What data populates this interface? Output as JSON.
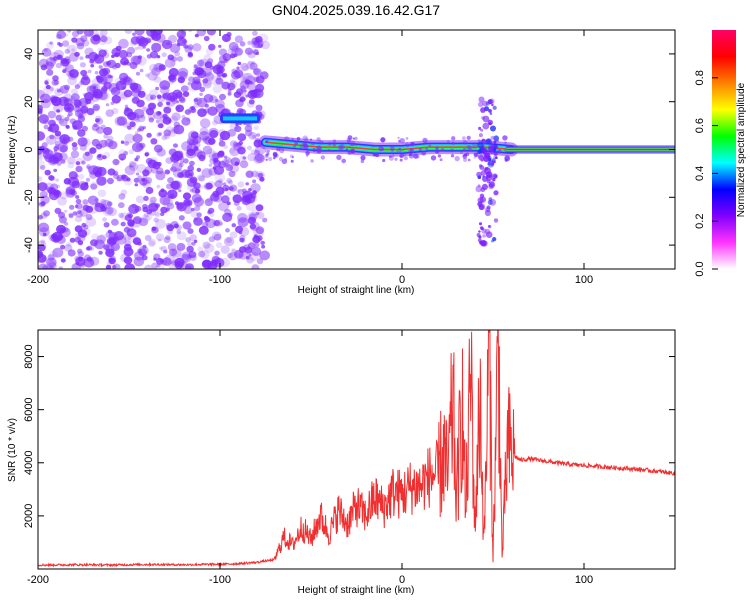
{
  "title": "GN04.2025.039.16.42.G17",
  "chart_data": [
    {
      "type": "heatmap",
      "xlabel": "Height of straight line (km)",
      "ylabel": "Frequency (Hz)",
      "xlim": [
        -200,
        150
      ],
      "ylim": [
        -50,
        50
      ],
      "xticks": [
        "-200",
        "-100",
        "0",
        "100"
      ],
      "yticks": [
        "-40",
        "-20",
        "0",
        "20",
        "40"
      ],
      "colorbar": {
        "label": "Normalized spectral amplitude",
        "range": [
          0,
          1
        ],
        "ticks": [
          "0.0",
          "0.2",
          "0.4",
          "0.6",
          "0.8"
        ],
        "colors": [
          "#ffffff",
          "#ff33ff",
          "#8000ff",
          "#0000ff",
          "#00ffff",
          "#00ff00",
          "#ffff00",
          "#ff8000",
          "#ff0000",
          "#ff0066"
        ]
      },
      "features": {
        "noise_region_x": [
          -200,
          -75
        ],
        "noise_color": "#7f2cff",
        "feature_segment": {
          "x": [
            -100,
            -78
          ],
          "y": 13
        },
        "ridge": [
          [
            -75,
            3
          ],
          [
            -60,
            2
          ],
          [
            -45,
            1
          ],
          [
            -30,
            1
          ],
          [
            -15,
            0
          ],
          [
            0,
            0
          ],
          [
            15,
            1
          ],
          [
            30,
            1
          ],
          [
            45,
            1
          ],
          [
            60,
            0
          ]
        ],
        "burst": {
          "x": [
            42,
            52
          ],
          "y_range": [
            -40,
            22
          ]
        },
        "steady_band": {
          "x": [
            57,
            150
          ],
          "y": 0
        }
      }
    },
    {
      "type": "line",
      "xlabel": "Height of straight line (km)",
      "ylabel": "SNR (10 * v/v)",
      "xlim": [
        -200,
        150
      ],
      "ylim": [
        0,
        9000
      ],
      "xticks": [
        "-200",
        "-100",
        "0",
        "100"
      ],
      "yticks": [
        "2000",
        "4000",
        "6000",
        "8000"
      ],
      "color": "#f03030",
      "series": [
        {
          "x": [
            -200,
            -180,
            -160,
            -140,
            -120,
            -100,
            -90,
            -80,
            -70,
            -65,
            -60,
            -55,
            -50,
            -45,
            -40,
            -35,
            -30,
            -25,
            -20,
            -15,
            -10,
            -5,
            0,
            5,
            10,
            15,
            20,
            23,
            25,
            28,
            30,
            33,
            35,
            38,
            40,
            43,
            45,
            48,
            50,
            53,
            55,
            58,
            60,
            63,
            65,
            70,
            80,
            90,
            100,
            110,
            120,
            130,
            140,
            150
          ],
          "y": [
            150,
            160,
            150,
            170,
            160,
            180,
            200,
            250,
            350,
            1200,
            900,
            1600,
            1100,
            2000,
            1300,
            2200,
            1700,
            2400,
            2000,
            2700,
            2300,
            2900,
            2800,
            3100,
            3100,
            3500,
            3600,
            4400,
            3400,
            6200,
            2600,
            6400,
            2200,
            7600,
            1600,
            6600,
            900,
            8500,
            500,
            8700,
            400,
            4700,
            4300,
            4200,
            4100,
            4150,
            4050,
            3950,
            3900,
            3850,
            3800,
            3750,
            3680,
            3600
          ]
        }
      ]
    }
  ]
}
